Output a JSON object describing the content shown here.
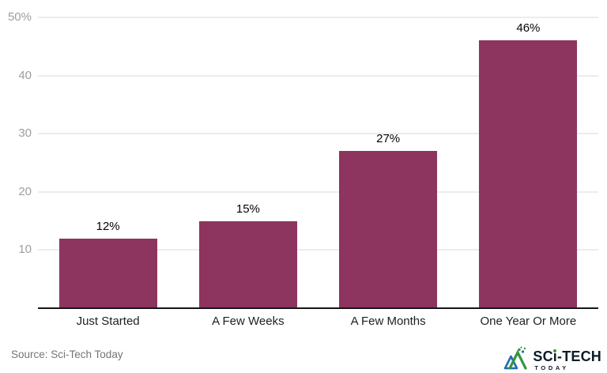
{
  "chart_data": {
    "type": "bar",
    "categories": [
      "Just Started",
      "A Few Weeks",
      "A Few Months",
      "One Year Or More"
    ],
    "values": [
      12,
      15,
      27,
      46
    ],
    "value_labels": [
      "12%",
      "15%",
      "27%",
      "46%"
    ],
    "y_ticks": [
      {
        "value": 10,
        "label": "10"
      },
      {
        "value": 20,
        "label": "20"
      },
      {
        "value": 30,
        "label": "30"
      },
      {
        "value": 40,
        "label": "40"
      },
      {
        "value": 50,
        "label": "50%"
      }
    ],
    "ylim": [
      0,
      50
    ],
    "xlabel": "",
    "ylabel": "",
    "title": "",
    "grid": true,
    "legend_position": "none",
    "bar_color": "#8D345F"
  },
  "theme": {
    "bar": "#8D345F",
    "grid": "#ececec",
    "axis": "#161616",
    "tick": "#9e9e9e",
    "xlab": "#1f1f1f",
    "value": "#050505",
    "source": "#757575",
    "logoink": "#0e1c27",
    "logogreen": "#36953c",
    "logoblue": "#1f6cb5"
  },
  "footer": {
    "source_text": "Source: Sci-Tech Today"
  },
  "logo": {
    "title_prefix": "SC",
    "title_i": "i",
    "title_suffix": "-TECH",
    "subtitle": "TODAY",
    "icon": "mountain-triangle-icon"
  }
}
